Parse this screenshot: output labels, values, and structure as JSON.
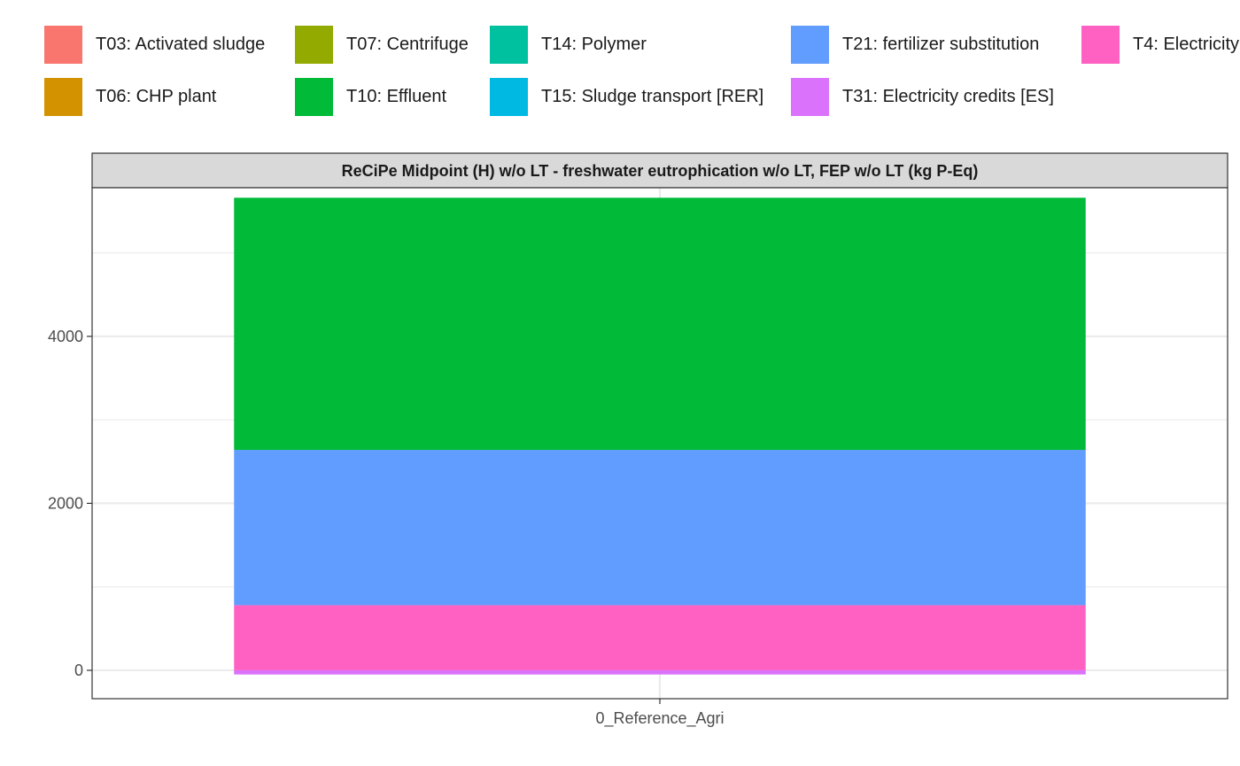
{
  "chart_data": {
    "type": "bar",
    "stacked": true,
    "facet_title": "ReCiPe Midpoint (H) w/o LT - freshwater eutrophication w/o LT, FEP w/o LT (kg P-Eq)",
    "categories": [
      "0_Reference_Agri"
    ],
    "xlabel": "",
    "ylabel": "",
    "ylim": [
      -340,
      5780
    ],
    "yticks": [
      0,
      2000,
      4000
    ],
    "grid": true,
    "legend_position": "top",
    "legend": [
      {
        "name": "T03: Activated  sludge",
        "color": "#F8766D"
      },
      {
        "name": "T06: CHP plant",
        "color": "#D39200"
      },
      {
        "name": "T07: Centrifuge",
        "color": "#93AA00"
      },
      {
        "name": "T10: Effluent",
        "color": "#00BA38"
      },
      {
        "name": "T14: Polymer",
        "color": "#00C19F"
      },
      {
        "name": "T15: Sludge transport [RER]",
        "color": "#00B9E3"
      },
      {
        "name": "T21: fertilizer substitution",
        "color": "#619CFF"
      },
      {
        "name": "T31: Electricity credits [ES]",
        "color": "#DB72FB"
      },
      {
        "name": "T4: Electricity",
        "color": "#FF61C3"
      }
    ],
    "series": [
      {
        "name": "T03: Activated  sludge",
        "color": "#F8766D",
        "values": [
          0
        ]
      },
      {
        "name": "T06: CHP plant",
        "color": "#D39200",
        "values": [
          0
        ]
      },
      {
        "name": "T07: Centrifuge",
        "color": "#93AA00",
        "values": [
          0
        ]
      },
      {
        "name": "T10: Effluent",
        "color": "#00BA38",
        "values": [
          3020
        ]
      },
      {
        "name": "T14: Polymer",
        "color": "#00C19F",
        "values": [
          0
        ]
      },
      {
        "name": "T15: Sludge transport [RER]",
        "color": "#00B9E3",
        "values": [
          0
        ]
      },
      {
        "name": "T21: fertilizer substitution",
        "color": "#619CFF",
        "values": [
          1860
        ]
      },
      {
        "name": "T31: Electricity credits [ES]",
        "color": "#DB72FB",
        "values": [
          -50
        ]
      },
      {
        "name": "T4: Electricity",
        "color": "#FF61C3",
        "values": [
          780
        ]
      }
    ]
  }
}
